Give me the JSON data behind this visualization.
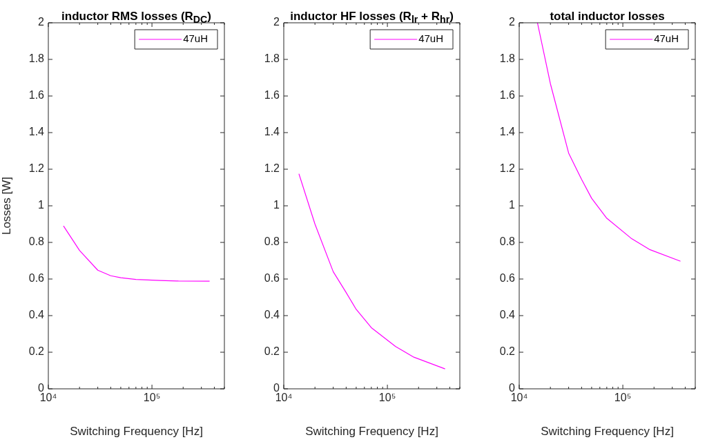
{
  "chart_data": [
    {
      "type": "line",
      "title": "inductor RMS losses (R$_{DC}$)",
      "xlabel": "Switching Frequency [Hz]",
      "ylabel": "Losses [W]",
      "log": "x",
      "legend": "top right",
      "grid": false,
      "xlim": [
        10000,
        500000
      ],
      "ylim": [
        0,
        2
      ],
      "xticks": [
        {
          "value": 10000,
          "label": "10⁴"
        },
        {
          "value": 20000,
          "label": null
        },
        {
          "value": 30000,
          "label": null
        },
        {
          "value": 40000,
          "label": null
        },
        {
          "value": 50000,
          "label": null
        },
        {
          "value": 60000,
          "label": null
        },
        {
          "value": 70000,
          "label": null
        },
        {
          "value": 80000,
          "label": null
        },
        {
          "value": 90000,
          "label": null
        },
        {
          "value": 100000,
          "label": "10⁵"
        },
        {
          "value": 200000,
          "label": null
        },
        {
          "value": 300000,
          "label": null
        },
        {
          "value": 400000,
          "label": null
        },
        {
          "value": 500000,
          "label": null
        }
      ],
      "yticks": [
        0,
        0.2,
        0.4,
        0.6,
        0.8,
        1,
        1.2,
        1.4,
        1.6,
        1.8,
        2
      ],
      "series": [
        {
          "name": "47uH",
          "color": "#ff00ff",
          "x": [
            14000,
            20000,
            30000,
            40000,
            50000,
            70000,
            120000,
            180000,
            360000
          ],
          "values": [
            0.89,
            0.756,
            0.648,
            0.618,
            0.607,
            0.598,
            0.592,
            0.589,
            0.588
          ]
        }
      ]
    },
    {
      "type": "line",
      "title": "inductor HF losses (R$_{lr}$ + R$_{hr}$)",
      "xlabel": "Switching Frequency [Hz]",
      "log": "x",
      "legend": "top right",
      "grid": false,
      "xlim": [
        10000,
        500000
      ],
      "ylim": [
        0,
        2
      ],
      "xticks": [
        {
          "value": 10000,
          "label": "10⁴"
        },
        {
          "value": 20000,
          "label": null
        },
        {
          "value": 30000,
          "label": null
        },
        {
          "value": 40000,
          "label": null
        },
        {
          "value": 50000,
          "label": null
        },
        {
          "value": 60000,
          "label": null
        },
        {
          "value": 70000,
          "label": null
        },
        {
          "value": 80000,
          "label": null
        },
        {
          "value": 90000,
          "label": null
        },
        {
          "value": 100000,
          "label": "10⁵"
        },
        {
          "value": 200000,
          "label": null
        },
        {
          "value": 300000,
          "label": null
        },
        {
          "value": 400000,
          "label": null
        },
        {
          "value": 500000,
          "label": null
        }
      ],
      "yticks": [
        0,
        0.2,
        0.4,
        0.6,
        0.8,
        1,
        1.2,
        1.4,
        1.6,
        1.8,
        2
      ],
      "series": [
        {
          "name": "47uH",
          "color": "#ff00ff",
          "x": [
            14000,
            20000,
            30000,
            40000,
            50000,
            70000,
            120000,
            180000,
            360000
          ],
          "values": [
            1.175,
            0.9,
            0.64,
            0.526,
            0.434,
            0.334,
            0.231,
            0.173,
            0.109
          ]
        }
      ]
    },
    {
      "type": "line",
      "title": "total inductor losses",
      "xlabel": "Switching Frequency [Hz]",
      "log": "x",
      "legend": "top right",
      "grid": false,
      "xlim": [
        10000,
        500000
      ],
      "ylim": [
        0,
        2
      ],
      "xticks": [
        {
          "value": 10000,
          "label": "10⁴"
        },
        {
          "value": 20000,
          "label": null
        },
        {
          "value": 30000,
          "label": null
        },
        {
          "value": 40000,
          "label": null
        },
        {
          "value": 50000,
          "label": null
        },
        {
          "value": 60000,
          "label": null
        },
        {
          "value": 70000,
          "label": null
        },
        {
          "value": 80000,
          "label": null
        },
        {
          "value": 90000,
          "label": null
        },
        {
          "value": 100000,
          "label": "10⁵"
        },
        {
          "value": 200000,
          "label": null
        },
        {
          "value": 300000,
          "label": null
        },
        {
          "value": 400000,
          "label": null
        },
        {
          "value": 500000,
          "label": null
        }
      ],
      "yticks": [
        0,
        0.2,
        0.4,
        0.6,
        0.8,
        1,
        1.2,
        1.4,
        1.6,
        1.8,
        2
      ],
      "series": [
        {
          "name": "47uH",
          "color": "#ff00ff",
          "x": [
            15000,
            20000,
            30000,
            40000,
            50000,
            70000,
            120000,
            180000,
            360000
          ],
          "values": [
            2.0,
            1.667,
            1.288,
            1.144,
            1.041,
            0.932,
            0.823,
            0.762,
            0.697
          ]
        }
      ]
    }
  ]
}
